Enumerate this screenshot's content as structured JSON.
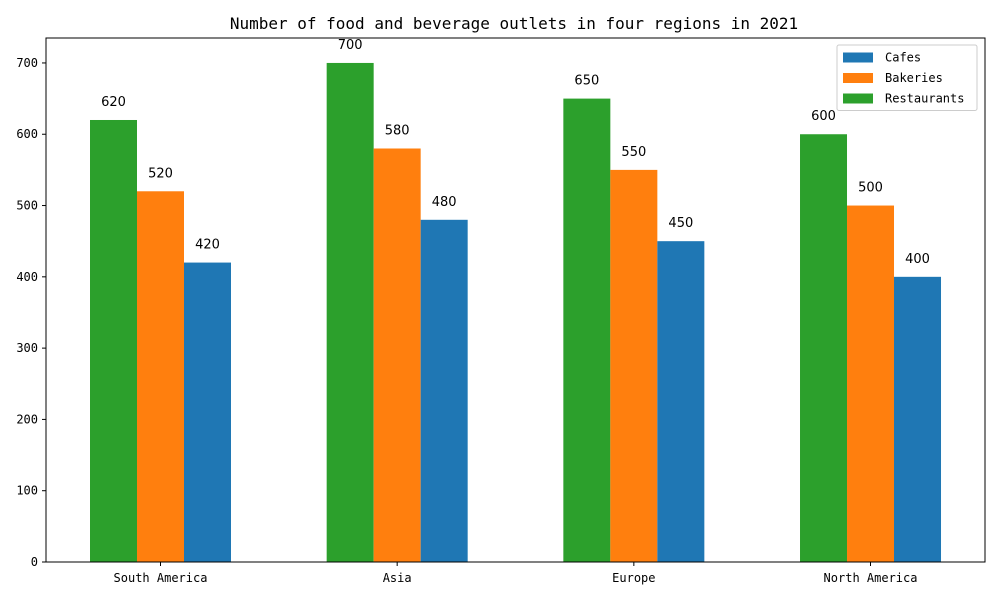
{
  "chart_data": {
    "type": "bar",
    "title": "Number of food and beverage outlets in four regions in 2021",
    "xlabel": "",
    "ylabel": "",
    "categories": [
      "South America",
      "Asia",
      "Europe",
      "North America"
    ],
    "series": [
      {
        "name": "Restaurants",
        "color": "#2ca02c",
        "values": [
          620,
          700,
          650,
          600
        ]
      },
      {
        "name": "Bakeries",
        "color": "#ff7f0e",
        "values": [
          520,
          580,
          550,
          500
        ]
      },
      {
        "name": "Cafes",
        "color": "#1f77b4",
        "values": [
          420,
          480,
          450,
          400
        ]
      }
    ],
    "legend_order": [
      "Cafes",
      "Bakeries",
      "Restaurants"
    ],
    "legend_placement": "top-right",
    "ylim": [
      0,
      735
    ],
    "yticks": [
      0,
      100,
      200,
      300,
      400,
      500,
      600,
      700
    ],
    "grid": false
  }
}
